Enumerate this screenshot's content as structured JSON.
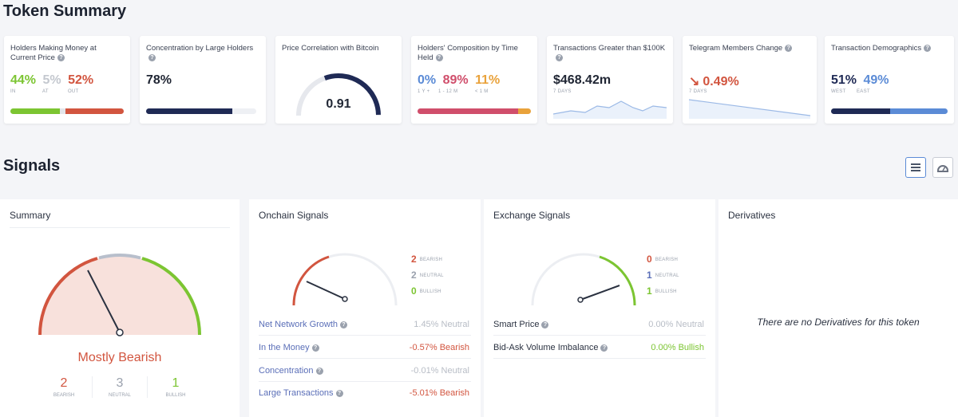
{
  "token_summary": {
    "title": "Token Summary",
    "cards": [
      {
        "title": "Holders Making Money at Current Price",
        "values": [
          "44%",
          "5%",
          "52%"
        ],
        "labels": [
          "IN",
          "AT",
          "OUT"
        ]
      },
      {
        "title": "Concentration by Large Holders",
        "values": [
          "78%"
        ]
      },
      {
        "title": "Price Correlation with Bitcoin",
        "values": [
          "0.91"
        ]
      },
      {
        "title": "Holders' Composition by Time Held",
        "values": [
          "0%",
          "89%",
          "11%"
        ],
        "labels": [
          "1 Y +",
          "1 - 12 M",
          "< 1 M"
        ]
      },
      {
        "title": "Transactions Greater than $100K",
        "values": [
          "$468.42m"
        ],
        "labels": [
          "7 DAYS"
        ]
      },
      {
        "title": "Telegram Members Change",
        "values": [
          "0.49%"
        ],
        "labels": [
          "7 DAYS"
        ]
      },
      {
        "title": "Transaction Demographics",
        "values": [
          "51%",
          "49%"
        ],
        "labels": [
          "WEST",
          "EAST"
        ]
      }
    ],
    "bar_levels": {
      "holders_money": [
        0.44,
        0.05,
        0.52
      ],
      "concentration": 0.78,
      "composition": [
        0.0,
        0.89,
        0.11
      ],
      "demographics": [
        0.51,
        0.49
      ]
    },
    "correlation_value": 0.91,
    "icons": {
      "telegram_trend": "arrow-down-right-icon",
      "help": "question-icon"
    }
  },
  "signals": {
    "title": "Signals",
    "view_icons": [
      "list-view-icon",
      "gauge-view-icon"
    ],
    "summary": {
      "title": "Summary",
      "verdict": "Mostly Bearish",
      "counts": [
        {
          "n": "2",
          "label": "BEARISH"
        },
        {
          "n": "3",
          "label": "NEUTRAL"
        },
        {
          "n": "1",
          "label": "BULLISH"
        }
      ]
    },
    "onchain": {
      "title": "Onchain Signals",
      "counts": [
        {
          "n": "2",
          "label": "BEARISH"
        },
        {
          "n": "2",
          "label": "NEUTRAL"
        },
        {
          "n": "0",
          "label": "BULLISH"
        }
      ],
      "rows": [
        {
          "name": "Net Network Growth",
          "value": "1.45%",
          "status": "Neutral"
        },
        {
          "name": "In the Money",
          "value": "-0.57%",
          "status": "Bearish"
        },
        {
          "name": "Concentration",
          "value": "-0.01%",
          "status": "Neutral"
        },
        {
          "name": "Large Transactions",
          "value": "-5.01%",
          "status": "Bearish"
        }
      ]
    },
    "exchange": {
      "title": "Exchange Signals",
      "counts": [
        {
          "n": "0",
          "label": "BEARISH"
        },
        {
          "n": "1",
          "label": "NEUTRAL"
        },
        {
          "n": "1",
          "label": "BULLISH"
        }
      ],
      "rows": [
        {
          "name": "Smart Price",
          "value": "0.00%",
          "status": "Neutral"
        },
        {
          "name": "Bid-Ask Volume Imbalance",
          "value": "0.00%",
          "status": "Bullish"
        }
      ]
    },
    "derivatives": {
      "title": "Derivatives",
      "empty_text": "There are no Derivatives for this token"
    }
  },
  "colors": {
    "bearish": "#d2553f",
    "neutral": "#9aa1ad",
    "bullish": "#7cc532",
    "navy": "#1f2a55"
  }
}
